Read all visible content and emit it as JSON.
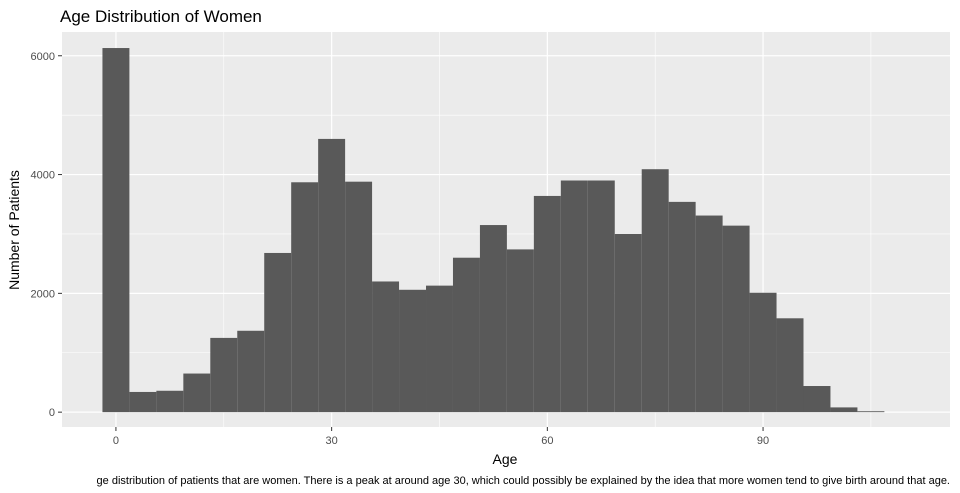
{
  "chart_data": {
    "type": "bar",
    "title": "Age Distribution of Women",
    "xlabel": "Age",
    "ylabel": "Number of Patients",
    "caption": "ge distribution of patients that are women. There is a peak at around age 30, which could possibly be explained by the idea that more women tend to give birth around that age.",
    "xlim": [
      -7.5,
      116
    ],
    "ylim": [
      -250,
      6400
    ],
    "x_ticks": [
      0,
      30,
      60,
      90
    ],
    "y_ticks": [
      0,
      2000,
      4000,
      6000
    ],
    "bin_width": 3.75,
    "bins": [
      {
        "start": -1.875,
        "count": 6130
      },
      {
        "start": 1.875,
        "count": 340
      },
      {
        "start": 5.625,
        "count": 360
      },
      {
        "start": 9.375,
        "count": 650
      },
      {
        "start": 13.125,
        "count": 1250
      },
      {
        "start": 16.875,
        "count": 1370
      },
      {
        "start": 20.625,
        "count": 2680
      },
      {
        "start": 24.375,
        "count": 3870
      },
      {
        "start": 28.125,
        "count": 4600
      },
      {
        "start": 31.875,
        "count": 3880
      },
      {
        "start": 35.625,
        "count": 2200
      },
      {
        "start": 39.375,
        "count": 2060
      },
      {
        "start": 43.125,
        "count": 2130
      },
      {
        "start": 46.875,
        "count": 2600
      },
      {
        "start": 50.625,
        "count": 3150
      },
      {
        "start": 54.375,
        "count": 2740
      },
      {
        "start": 58.125,
        "count": 3640
      },
      {
        "start": 61.875,
        "count": 3900
      },
      {
        "start": 65.625,
        "count": 3900
      },
      {
        "start": 69.375,
        "count": 3000
      },
      {
        "start": 73.125,
        "count": 4090
      },
      {
        "start": 76.875,
        "count": 3540
      },
      {
        "start": 80.625,
        "count": 3310
      },
      {
        "start": 84.375,
        "count": 3140
      },
      {
        "start": 88.125,
        "count": 2010
      },
      {
        "start": 91.875,
        "count": 1580
      },
      {
        "start": 95.625,
        "count": 440
      },
      {
        "start": 99.375,
        "count": 80
      },
      {
        "start": 103.125,
        "count": 15
      }
    ],
    "colors": {
      "panel_background": "#ebebeb",
      "grid_major": "#ffffff",
      "bar_fill": "#595959"
    },
    "grid": true,
    "legend": "none"
  }
}
